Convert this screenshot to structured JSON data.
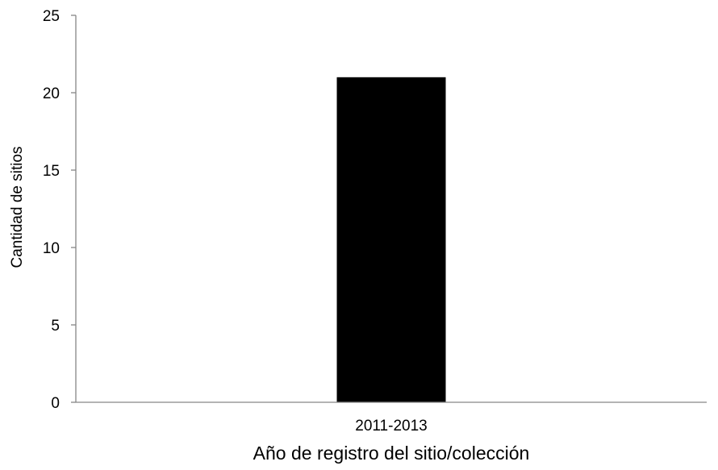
{
  "chart_data": {
    "type": "bar",
    "categories": [
      "2011-2013"
    ],
    "series": [
      {
        "values": [
          21
        ]
      }
    ],
    "title": "",
    "xlabel": "Año de registro del sitio/colección",
    "ylabel": "Cantidad de sitios",
    "ylim": [
      0,
      25
    ],
    "yticks": [
      0,
      5,
      10,
      15,
      20,
      25
    ],
    "grid": false,
    "legend": "none",
    "bar_color": "#000000",
    "axis_color": "#868686"
  }
}
